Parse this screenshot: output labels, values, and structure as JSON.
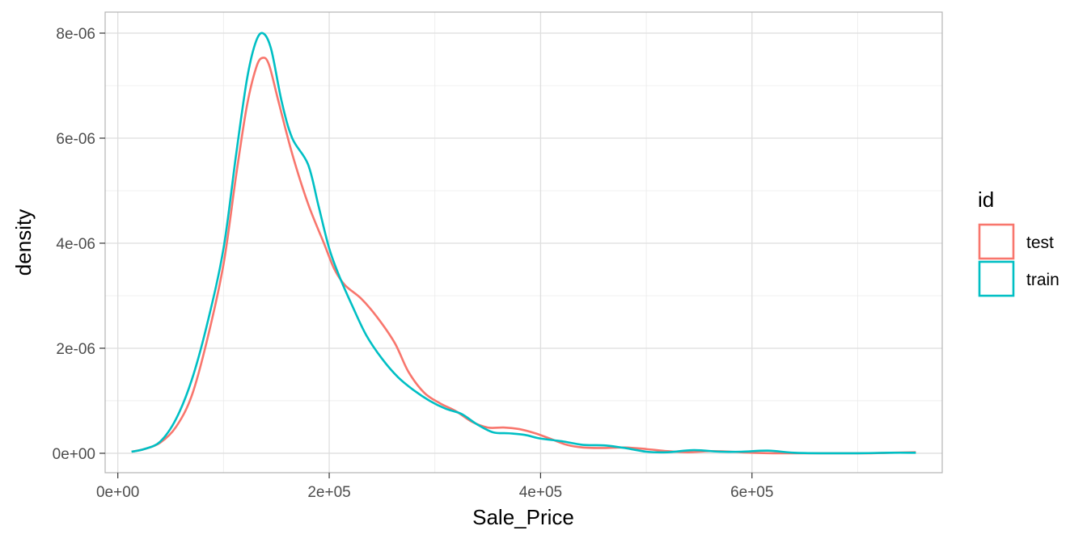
{
  "chart_data": {
    "type": "line",
    "subtype": "density",
    "xlabel": "Sale_Price",
    "ylabel": "density",
    "xlim": [
      -12000,
      780000
    ],
    "ylim": [
      -3.7e-07,
      8.4e-06
    ],
    "x_ticks": [
      {
        "value": 0,
        "label": "0e+00"
      },
      {
        "value": 200000,
        "label": "2e+05"
      },
      {
        "value": 400000,
        "label": "4e+05"
      },
      {
        "value": 600000,
        "label": "6e+05"
      }
    ],
    "x_minor": [
      100000,
      300000,
      500000,
      700000
    ],
    "y_ticks": [
      {
        "value": 0,
        "label": "0e+00"
      },
      {
        "value": 2e-06,
        "label": "2e-06"
      },
      {
        "value": 4e-06,
        "label": "4e-06"
      },
      {
        "value": 6e-06,
        "label": "6e-06"
      },
      {
        "value": 8e-06,
        "label": "8e-06"
      }
    ],
    "y_minor": [
      1e-06,
      3e-06,
      5e-06,
      7e-06
    ],
    "grid": true,
    "legend": {
      "title": "id",
      "position": "right"
    },
    "series": [
      {
        "name": "test",
        "color": "#F8766D",
        "points": [
          [
            13000,
            3e-08
          ],
          [
            25000,
            8e-08
          ],
          [
            40000,
            2e-07
          ],
          [
            55000,
            5e-07
          ],
          [
            70000,
            1.1e-06
          ],
          [
            85000,
            2.2e-06
          ],
          [
            100000,
            3.6e-06
          ],
          [
            112000,
            5.3e-06
          ],
          [
            122000,
            6.6e-06
          ],
          [
            131000,
            7.35e-06
          ],
          [
            137000,
            7.53e-06
          ],
          [
            143000,
            7.4e-06
          ],
          [
            152000,
            6.7e-06
          ],
          [
            165000,
            5.7e-06
          ],
          [
            180000,
            4.75e-06
          ],
          [
            195000,
            4e-06
          ],
          [
            205000,
            3.5e-06
          ],
          [
            215000,
            3.2e-06
          ],
          [
            230000,
            2.95e-06
          ],
          [
            245000,
            2.6e-06
          ],
          [
            262000,
            2.1e-06
          ],
          [
            275000,
            1.55e-06
          ],
          [
            290000,
            1.15e-06
          ],
          [
            305000,
            9.5e-07
          ],
          [
            320000,
            8e-07
          ],
          [
            335000,
            6e-07
          ],
          [
            350000,
            4.9e-07
          ],
          [
            365000,
            4.9e-07
          ],
          [
            380000,
            4.6e-07
          ],
          [
            395000,
            3.8e-07
          ],
          [
            410000,
            2.7e-07
          ],
          [
            425000,
            1.6e-07
          ],
          [
            440000,
            1.1e-07
          ],
          [
            460000,
            1e-07
          ],
          [
            480000,
            1.1e-07
          ],
          [
            500000,
            8e-08
          ],
          [
            520000,
            4e-08
          ],
          [
            540000,
            2e-08
          ],
          [
            560000,
            4e-08
          ],
          [
            580000,
            3e-08
          ],
          [
            600000,
            1e-08
          ],
          [
            620000,
            0
          ],
          [
            650000,
            0
          ],
          [
            680000,
            0
          ],
          [
            710000,
            0
          ],
          [
            730000,
            1e-08
          ],
          [
            755000,
            2e-08
          ]
        ]
      },
      {
        "name": "train",
        "color": "#00BFC4",
        "points": [
          [
            13000,
            3e-08
          ],
          [
            25000,
            8e-08
          ],
          [
            40000,
            2.2e-07
          ],
          [
            55000,
            6.5e-07
          ],
          [
            70000,
            1.4e-06
          ],
          [
            85000,
            2.5e-06
          ],
          [
            100000,
            3.9e-06
          ],
          [
            112000,
            5.7e-06
          ],
          [
            122000,
            7.1e-06
          ],
          [
            130000,
            7.8e-06
          ],
          [
            137000,
            8e-06
          ],
          [
            145000,
            7.7e-06
          ],
          [
            155000,
            6.7e-06
          ],
          [
            165000,
            6e-06
          ],
          [
            180000,
            5.5e-06
          ],
          [
            190000,
            4.7e-06
          ],
          [
            200000,
            3.9e-06
          ],
          [
            210000,
            3.35e-06
          ],
          [
            222000,
            2.8e-06
          ],
          [
            235000,
            2.25e-06
          ],
          [
            250000,
            1.8e-06
          ],
          [
            265000,
            1.45e-06
          ],
          [
            280000,
            1.2e-06
          ],
          [
            295000,
            1e-06
          ],
          [
            310000,
            8.5e-07
          ],
          [
            325000,
            7.5e-07
          ],
          [
            340000,
            5.5e-07
          ],
          [
            355000,
            4e-07
          ],
          [
            370000,
            3.8e-07
          ],
          [
            385000,
            3.5e-07
          ],
          [
            400000,
            2.8e-07
          ],
          [
            420000,
            2.3e-07
          ],
          [
            440000,
            1.6e-07
          ],
          [
            460000,
            1.5e-07
          ],
          [
            480000,
            1e-07
          ],
          [
            500000,
            3e-08
          ],
          [
            520000,
            2e-08
          ],
          [
            545000,
            6e-08
          ],
          [
            570000,
            3e-08
          ],
          [
            590000,
            3e-08
          ],
          [
            615000,
            5e-08
          ],
          [
            640000,
            1e-08
          ],
          [
            670000,
            0
          ],
          [
            700000,
            0
          ],
          [
            730000,
            1e-08
          ],
          [
            755000,
            1e-08
          ]
        ]
      }
    ]
  }
}
